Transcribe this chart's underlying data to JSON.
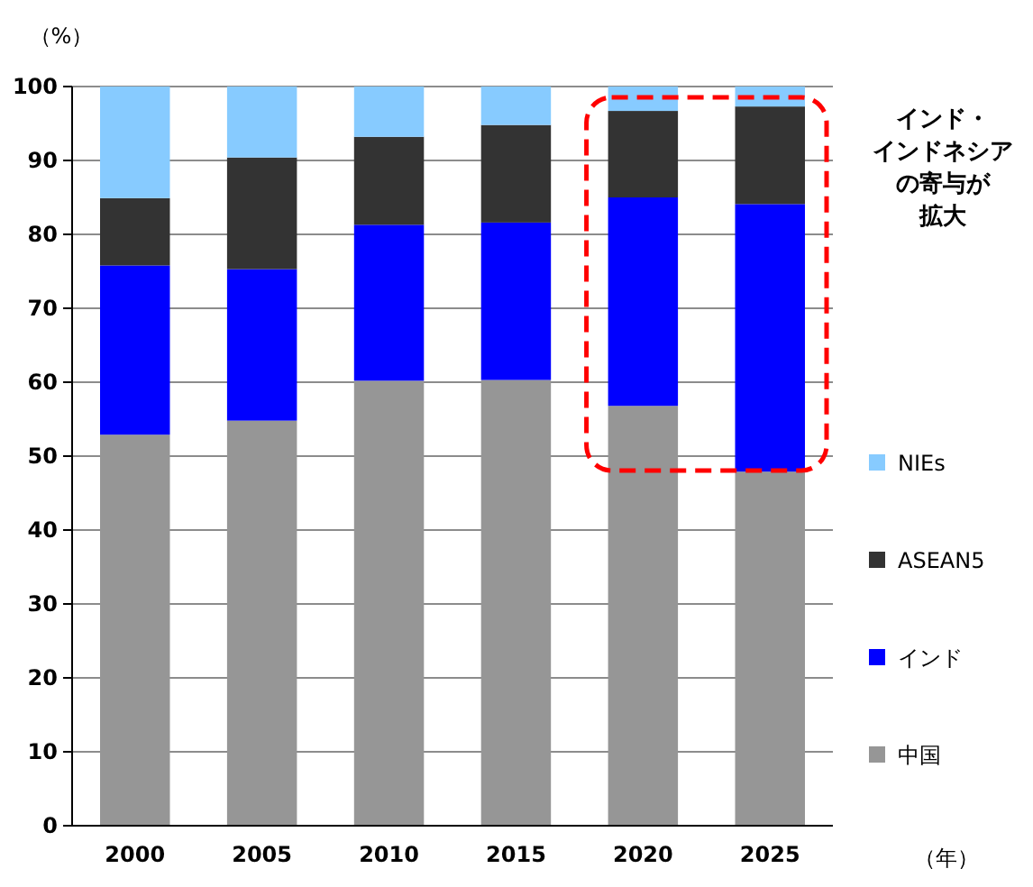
{
  "chart_data": {
    "type": "bar",
    "stacked": true,
    "categories": [
      "2000",
      "2005",
      "2010",
      "2015",
      "2020",
      "2025"
    ],
    "series": [
      {
        "name": "中国",
        "color": "#969696",
        "values": [
          52.9,
          54.8,
          60.2,
          60.3,
          56.8,
          47.9
        ]
      },
      {
        "name": "インド",
        "color": "#0000ff",
        "values": [
          22.9,
          20.5,
          21.1,
          21.3,
          28.2,
          36.2
        ]
      },
      {
        "name": "ASEAN5",
        "color": "#333333",
        "values": [
          9.1,
          15.1,
          11.9,
          13.2,
          11.7,
          13.2
        ]
      },
      {
        "name": "NIEs",
        "color": "#87cbff",
        "values": [
          15.1,
          9.6,
          6.8,
          5.2,
          3.3,
          2.7
        ]
      }
    ],
    "ylim": [
      0,
      100
    ],
    "yticks": [
      0,
      10,
      20,
      30,
      40,
      50,
      60,
      70,
      80,
      90,
      100
    ],
    "grid": "y",
    "legend": "right",
    "ylabel": "（%）",
    "xlabel": "（年）",
    "annotations": [
      "インド・インドネシアの寄与が拡大"
    ]
  }
}
